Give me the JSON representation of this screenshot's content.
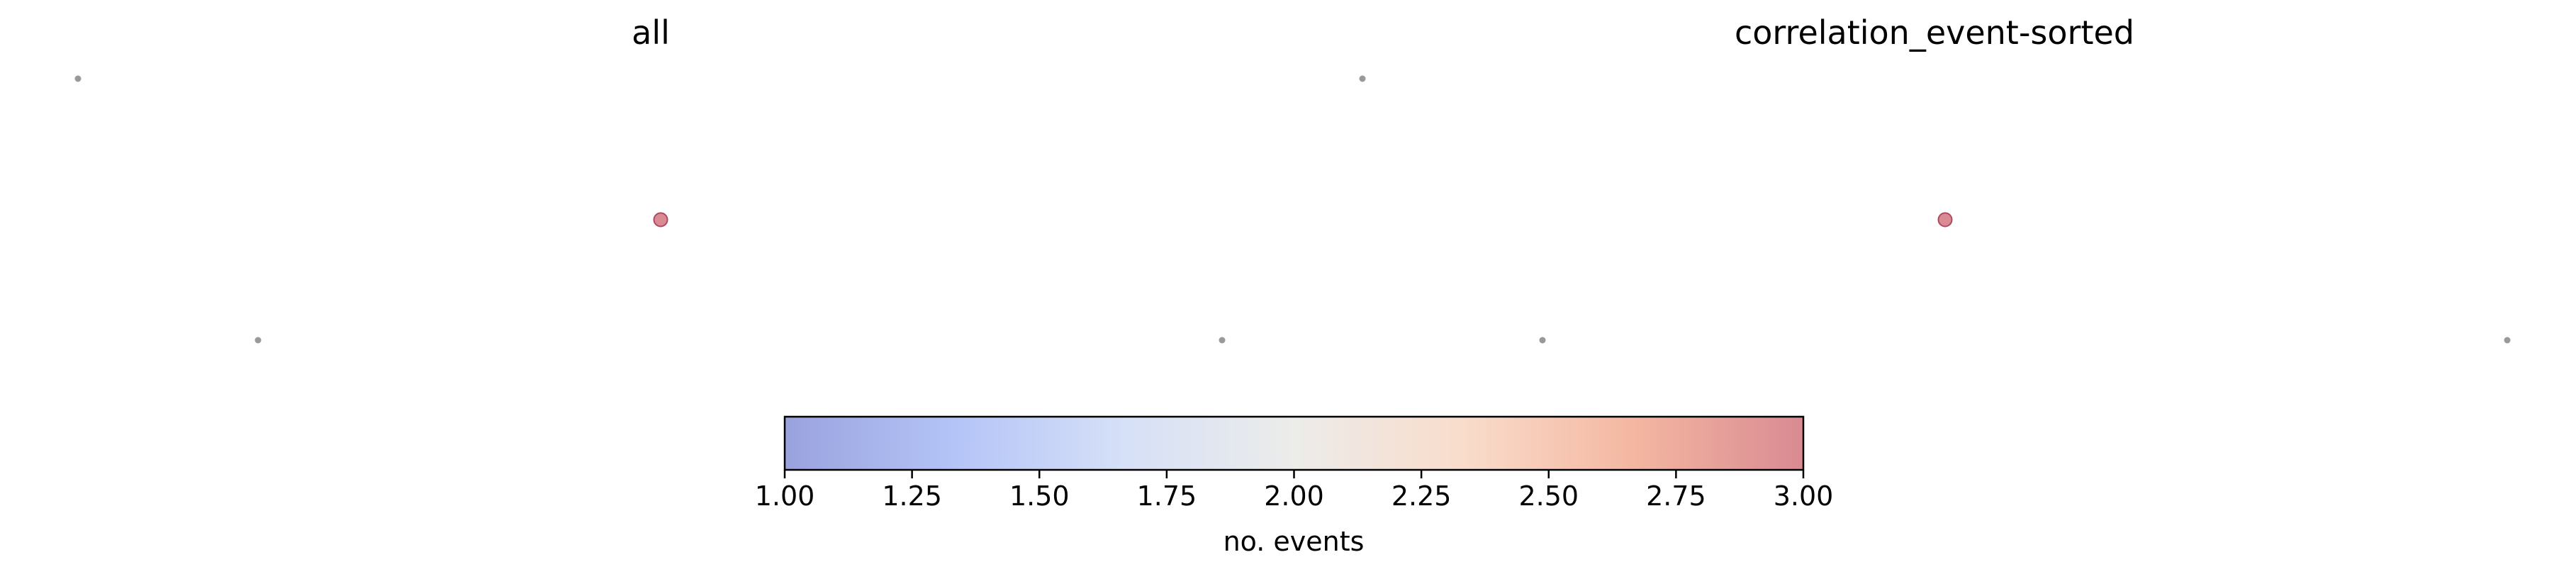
{
  "chart_data": {
    "type": "scatter",
    "panels": [
      {
        "title": "all",
        "points": [
          {
            "events": 1
          },
          {
            "events": 3
          },
          {
            "events": 1
          },
          {
            "events": 1
          }
        ]
      },
      {
        "title": "correlation_event-sorted",
        "points": [
          {
            "events": 1
          },
          {
            "events": 3
          },
          {
            "events": 1
          },
          {
            "events": 1
          }
        ]
      }
    ],
    "colorbar": {
      "label": "no. events",
      "range": [
        1.0,
        3.0
      ],
      "ticks": [
        "1.00",
        "1.25",
        "1.50",
        "1.75",
        "2.00",
        "2.25",
        "2.50",
        "2.75",
        "3.00"
      ],
      "colormap": "coolwarm",
      "colors": [
        "#9aa2de",
        "#b4c4f7",
        "#d6e0f7",
        "#ececea",
        "#f9dccb",
        "#f4b7a1",
        "#d98a92"
      ],
      "orientation": "horizontal"
    },
    "grid": false,
    "axes_visible": false,
    "small_marker_color": "#999999"
  }
}
